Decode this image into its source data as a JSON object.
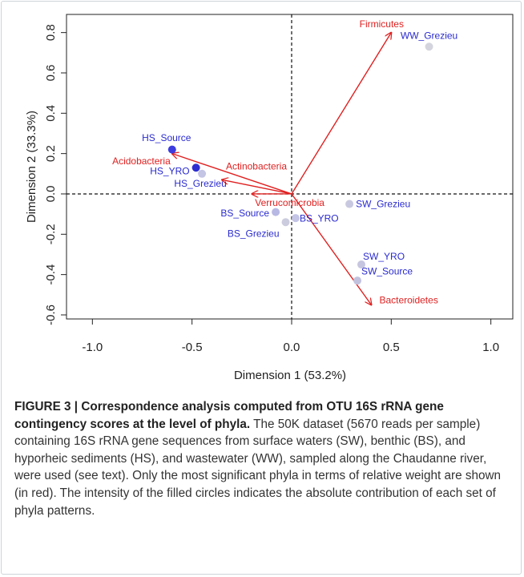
{
  "chart_data": {
    "type": "scatter",
    "xlabel": "Dimension 1 (53.2%)",
    "ylabel": "Dimension 2 (33.3%)",
    "xlim": [
      -1.13,
      1.11
    ],
    "ylim": [
      -0.62,
      0.89
    ],
    "xticks": [
      {
        "value": -1,
        "label": "-1.0"
      },
      -0.5,
      {
        "value": 0,
        "label": "0.0"
      },
      0.5,
      {
        "value": 1,
        "label": "1.0"
      }
    ],
    "yticks": [
      -0.6,
      -0.4,
      -0.2,
      {
        "value": 0,
        "label": "0.0"
      },
      0.2,
      0.4,
      0.6,
      0.8
    ],
    "label_color": "#2a2ad0",
    "arrow_color": "#e02020",
    "points": [
      {
        "name": "WW_Grezieu",
        "x": 0.69,
        "y": 0.73,
        "color": "#d4d4de"
      },
      {
        "name": "HS_Source",
        "x": -0.6,
        "y": 0.22,
        "color": "#3c3ce0"
      },
      {
        "name": "HS_YRO",
        "x": -0.48,
        "y": 0.13,
        "color": "#2e2ed0"
      },
      {
        "name": "HS_Grezieu",
        "x": -0.45,
        "y": 0.1,
        "color": "#c4c4e4"
      },
      {
        "name": "SW_Grezieu",
        "x": 0.29,
        "y": -0.05,
        "color": "#c8c8e0"
      },
      {
        "name": "BS_Source",
        "x": -0.08,
        "y": -0.09,
        "color": "#b8b8e4"
      },
      {
        "name": "BS_YRO",
        "x": 0.02,
        "y": -0.12,
        "color": "#c4c4e6"
      },
      {
        "name": "BS_Grezieu",
        "x": -0.03,
        "y": -0.14,
        "color": "#ccccdf"
      },
      {
        "name": "SW_YRO",
        "x": 0.35,
        "y": -0.35,
        "color": "#c6c6e0"
      },
      {
        "name": "SW_Source",
        "x": 0.33,
        "y": -0.43,
        "color": "#c2c2de"
      }
    ],
    "arrows": [
      {
        "name": "Firmicutes",
        "x": 0.5,
        "y": 0.8
      },
      {
        "name": "Acidobacteria",
        "x": -0.6,
        "y": 0.2
      },
      {
        "name": "Actinobacteria",
        "x": -0.35,
        "y": 0.07
      },
      {
        "name": "Verrucomicrobia",
        "x": -0.2,
        "y": 0.0
      },
      {
        "name": "Bacteroidetes",
        "x": 0.4,
        "y": -0.55
      }
    ]
  },
  "caption": {
    "label": "FIGURE 3 | Correspondence analysis computed from OTU 16S rRNA gene contingency scores at the level of phyla.",
    "text": "The 50K dataset (5670 reads per sample) containing 16S rRNA gene sequences from surface waters (SW), benthic (BS), and hyporheic sediments (HS), and wastewater (WW), sampled along the Chaudanne river, were used (see text). Only the most significant phyla in terms of relative weight are shown (in red). The intensity of the filled circles indicates the absolute contribution of each set of phyla patterns."
  }
}
